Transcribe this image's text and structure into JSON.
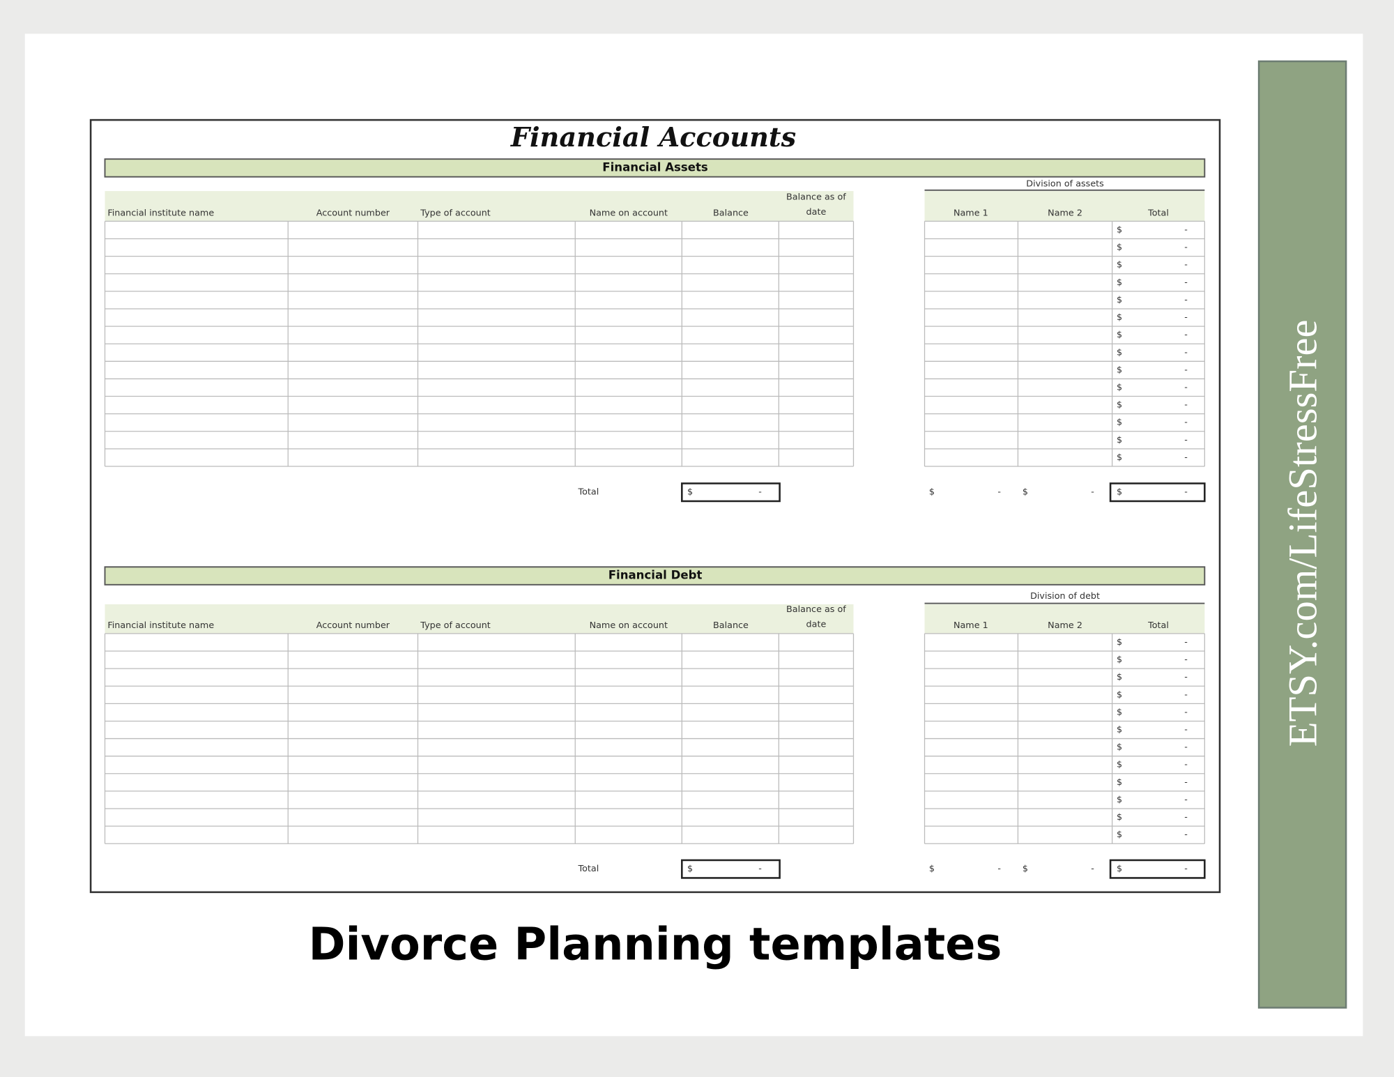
{
  "title": "Financial Accounts",
  "sections": [
    {
      "heading": "Financial Assets",
      "division_label": "Division of assets",
      "columns": [
        [
          "Financial institute name"
        ],
        [
          "Account number"
        ],
        [
          "Type of account"
        ],
        [
          "Name on account"
        ],
        [
          "Balance"
        ],
        [
          "Balance as of",
          "date"
        ]
      ],
      "division_columns": [
        "Name 1",
        "Name 2",
        "Total"
      ],
      "row_totals": [
        [
          "$",
          "-"
        ],
        [
          "$",
          "-"
        ],
        [
          "$",
          "-"
        ],
        [
          "$",
          "-"
        ],
        [
          "$",
          "-"
        ],
        [
          "$",
          "-"
        ],
        [
          "$",
          "-"
        ],
        [
          "$",
          "-"
        ],
        [
          "$",
          "-"
        ],
        [
          "$",
          "-"
        ],
        [
          "$",
          "-"
        ],
        [
          "$",
          "-"
        ],
        [
          "$",
          "-"
        ],
        [
          "$",
          "-"
        ]
      ],
      "total_label": "Total",
      "balance_total": [
        "$",
        "-"
      ],
      "name1_total": [
        "$",
        "-"
      ],
      "name2_total": [
        "$",
        "-"
      ],
      "grand_total": [
        "$",
        "-"
      ]
    },
    {
      "heading": "Financial Debt",
      "division_label": "Division of debt",
      "columns": [
        [
          "Financial institute name"
        ],
        [
          "Account number"
        ],
        [
          "Type of account"
        ],
        [
          "Name on account"
        ],
        [
          "Balance"
        ],
        [
          "Balance as of",
          "date"
        ]
      ],
      "division_columns": [
        "Name 1",
        "Name 2",
        "Total"
      ],
      "row_totals": [
        [
          "$",
          "-"
        ],
        [
          "$",
          "-"
        ],
        [
          "$",
          "-"
        ],
        [
          "$",
          "-"
        ],
        [
          "$",
          "-"
        ],
        [
          "$",
          "-"
        ],
        [
          "$",
          "-"
        ],
        [
          "$",
          "-"
        ],
        [
          "$",
          "-"
        ],
        [
          "$",
          "-"
        ],
        [
          "$",
          "-"
        ],
        [
          "$",
          "-"
        ]
      ],
      "total_label": "Total",
      "balance_total": [
        "$",
        "-"
      ],
      "name1_total": [
        "$",
        "-"
      ],
      "name2_total": [
        "$",
        "-"
      ],
      "grand_total": [
        "$",
        "-"
      ]
    }
  ],
  "caption": "Divorce Planning templates",
  "sidebar": "ETSY.com/LifeStressFree"
}
